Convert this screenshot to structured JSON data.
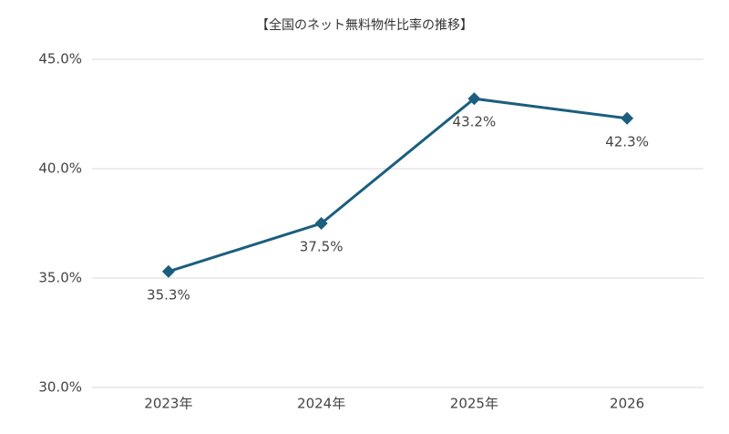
{
  "chart_data": {
    "type": "line",
    "title": "【全国のネット無料物件比率の推移】",
    "categories": [
      "2023年",
      "2024年",
      "2025年",
      "2026"
    ],
    "series": [
      {
        "name": null,
        "color": "#1b5e7e",
        "values": [
          35.3,
          37.5,
          43.2,
          42.3
        ],
        "value_labels": [
          "35.3%",
          "37.5%",
          "43.2%",
          "42.3%"
        ]
      }
    ],
    "ylim": [
      30,
      45
    ],
    "yticks": [
      {
        "value": 30,
        "label": "30.0%"
      },
      {
        "value": 35,
        "label": "35.0%"
      },
      {
        "value": 40,
        "label": "40.0%"
      },
      {
        "value": 45,
        "label": "45.0%"
      }
    ],
    "grid": true
  }
}
